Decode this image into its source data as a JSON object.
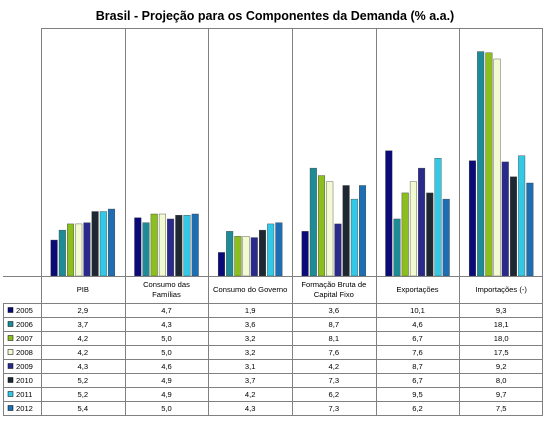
{
  "chart_data": {
    "type": "bar",
    "title": "Brasil - Projeção para os Componentes da Demanda (% a.a.)",
    "categories": [
      "PIB",
      "Consumo das Famílias",
      "Consumo do Governo",
      "Formação Bruta de Capital Fixo",
      "Exportações",
      "Importações (-)"
    ],
    "category_lines": [
      [
        "PIB"
      ],
      [
        "Consumo das",
        "Famílias"
      ],
      [
        "Consumo do Governo"
      ],
      [
        "Formação Bruta de",
        "Capital Fixo"
      ],
      [
        "Exportações"
      ],
      [
        "Importações (-)"
      ]
    ],
    "series": [
      {
        "name": "2005",
        "color": "#0a0a78",
        "values": [
          2.9,
          4.7,
          1.9,
          3.6,
          10.1,
          9.3
        ],
        "labels": [
          "2,9",
          "4,7",
          "1,9",
          "3,6",
          "10,1",
          "9,3"
        ]
      },
      {
        "name": "2006",
        "color": "#1e8c96",
        "values": [
          3.7,
          4.3,
          3.6,
          8.7,
          4.6,
          18.1
        ],
        "labels": [
          "3,7",
          "4,3",
          "3,6",
          "8,7",
          "4,6",
          "18,1"
        ]
      },
      {
        "name": "2007",
        "color": "#8cbe1e",
        "values": [
          4.2,
          5.0,
          3.2,
          8.1,
          6.7,
          18.0
        ],
        "labels": [
          "4,2",
          "5,0",
          "3,2",
          "8,1",
          "6,7",
          "18,0"
        ]
      },
      {
        "name": "2008",
        "color": "#f2fad2",
        "values": [
          4.2,
          5.0,
          3.2,
          7.6,
          7.6,
          17.5
        ],
        "labels": [
          "4,2",
          "5,0",
          "3,2",
          "7,6",
          "7,6",
          "17,5"
        ]
      },
      {
        "name": "2009",
        "color": "#2a2a8c",
        "values": [
          4.3,
          4.6,
          3.1,
          4.2,
          8.7,
          9.2
        ],
        "labels": [
          "4,3",
          "4,6",
          "3,1",
          "4,2",
          "8,7",
          "9,2"
        ]
      },
      {
        "name": "2010",
        "color": "#1e2832",
        "values": [
          5.2,
          4.9,
          3.7,
          7.3,
          6.7,
          8.0
        ],
        "labels": [
          "5,2",
          "4,9",
          "3,7",
          "7,3",
          "6,7",
          "8,0"
        ]
      },
      {
        "name": "2011",
        "color": "#32c8e6",
        "values": [
          5.2,
          4.9,
          4.2,
          6.2,
          9.5,
          9.7
        ],
        "labels": [
          "5,2",
          "4,9",
          "4,2",
          "6,2",
          "9,5",
          "9,7"
        ]
      },
      {
        "name": "2012",
        "color": "#1e6eb4",
        "values": [
          5.4,
          5.0,
          4.3,
          7.3,
          6.2,
          7.5
        ],
        "labels": [
          "5,4",
          "5,0",
          "4,3",
          "7,3",
          "6,2",
          "7,5"
        ]
      }
    ],
    "ylim": [
      0,
      20
    ],
    "grid": false,
    "legend": "table-left"
  }
}
